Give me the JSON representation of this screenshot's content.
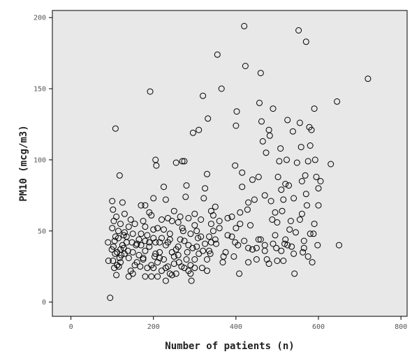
{
  "chart_data": {
    "type": "scatter",
    "xlabel": "Number of patients (n)",
    "ylabel": "PM10 (mcg/m3)",
    "xlim": [
      -45,
      815
    ],
    "ylim": [
      -10,
      205
    ],
    "xticks": [
      0,
      200,
      400,
      600,
      800
    ],
    "yticks": [
      0,
      50,
      100,
      150,
      200
    ],
    "grid": false,
    "background_color": "#e8e8e8",
    "marker_color": "#000000",
    "marker": "hollow-circle",
    "series": [
      {
        "points": [
          [
            95,
            3
          ],
          [
            90,
            42
          ],
          [
            91,
            29
          ],
          [
            100,
            71
          ],
          [
            102,
            65
          ],
          [
            104,
            57
          ],
          [
            106,
            43
          ],
          [
            108,
            122
          ],
          [
            110,
            60
          ],
          [
            118,
            89
          ],
          [
            115,
            45
          ],
          [
            112,
            35
          ],
          [
            120,
            37
          ],
          [
            125,
            40
          ],
          [
            130,
            34
          ],
          [
            120,
            28
          ],
          [
            103,
            39
          ],
          [
            107,
            34
          ],
          [
            99,
            37
          ],
          [
            105,
            24
          ],
          [
            110,
            19
          ],
          [
            116,
            25
          ],
          [
            122,
            33
          ],
          [
            128,
            38
          ],
          [
            135,
            42
          ],
          [
            140,
            31
          ],
          [
            145,
            22
          ],
          [
            150,
            35
          ],
          [
            155,
            55
          ],
          [
            160,
            41
          ],
          [
            165,
            33
          ],
          [
            170,
            48
          ],
          [
            175,
            57
          ],
          [
            180,
            68
          ],
          [
            185,
            24
          ],
          [
            190,
            42
          ],
          [
            192,
            148
          ],
          [
            195,
            61
          ],
          [
            200,
            51
          ],
          [
            203,
            32
          ],
          [
            205,
            100
          ],
          [
            207,
            96
          ],
          [
            210,
            28
          ],
          [
            215,
            35
          ],
          [
            220,
            45
          ],
          [
            225,
            81
          ],
          [
            230,
            72
          ],
          [
            235,
            59
          ],
          [
            240,
            44
          ],
          [
            245,
            57
          ],
          [
            250,
            64
          ],
          [
            255,
            98
          ],
          [
            260,
            39
          ],
          [
            265,
            60
          ],
          [
            270,
            99
          ],
          [
            272,
            50
          ],
          [
            275,
            99
          ],
          [
            278,
            74
          ],
          [
            280,
            82
          ],
          [
            285,
            59
          ],
          [
            290,
            20
          ],
          [
            292,
            15
          ],
          [
            296,
            119
          ],
          [
            300,
            54
          ],
          [
            305,
            50
          ],
          [
            310,
            121
          ],
          [
            315,
            58
          ],
          [
            320,
            145
          ],
          [
            322,
            73
          ],
          [
            325,
            41
          ],
          [
            330,
            90
          ],
          [
            332,
            129
          ],
          [
            335,
            46
          ],
          [
            340,
            64
          ],
          [
            345,
            50
          ],
          [
            350,
            44
          ],
          [
            355,
            174
          ],
          [
            360,
            57
          ],
          [
            365,
            150
          ],
          [
            370,
            32
          ],
          [
            380,
            59
          ],
          [
            390,
            46
          ],
          [
            398,
            96
          ],
          [
            400,
            124
          ],
          [
            402,
            134
          ],
          [
            405,
            40
          ],
          [
            408,
            20
          ],
          [
            410,
            55
          ],
          [
            415,
            81
          ],
          [
            420,
            194
          ],
          [
            423,
            166
          ],
          [
            428,
            65
          ],
          [
            430,
            38
          ],
          [
            435,
            54
          ],
          [
            440,
            86
          ],
          [
            445,
            72
          ],
          [
            450,
            30
          ],
          [
            455,
            44
          ],
          [
            457,
            140
          ],
          [
            460,
            161
          ],
          [
            462,
            127
          ],
          [
            465,
            113
          ],
          [
            470,
            40
          ],
          [
            473,
            105
          ],
          [
            475,
            30
          ],
          [
            480,
            121
          ],
          [
            482,
            117
          ],
          [
            485,
            71
          ],
          [
            488,
            58
          ],
          [
            490,
            136
          ],
          [
            495,
            47
          ],
          [
            498,
            38
          ],
          [
            500,
            29
          ],
          [
            502,
            88
          ],
          [
            505,
            99
          ],
          [
            508,
            108
          ],
          [
            510,
            79
          ],
          [
            512,
            64
          ],
          [
            515,
            29
          ],
          [
            518,
            41
          ],
          [
            520,
            83
          ],
          [
            523,
            100
          ],
          [
            525,
            128
          ],
          [
            528,
            82
          ],
          [
            530,
            51
          ],
          [
            533,
            57
          ],
          [
            535,
            39
          ],
          [
            538,
            120
          ],
          [
            540,
            73
          ],
          [
            542,
            20
          ],
          [
            548,
            98
          ],
          [
            552,
            191
          ],
          [
            555,
            126
          ],
          [
            558,
            109
          ],
          [
            560,
            85
          ],
          [
            562,
            35
          ],
          [
            565,
            43
          ],
          [
            568,
            89
          ],
          [
            570,
            76
          ],
          [
            572,
            68
          ],
          [
            575,
            99
          ],
          [
            578,
            123
          ],
          [
            580,
            110
          ],
          [
            583,
            121
          ],
          [
            585,
            28
          ],
          [
            588,
            48
          ],
          [
            590,
            136
          ],
          [
            592,
            100
          ],
          [
            595,
            88
          ],
          [
            598,
            40
          ],
          [
            600,
            80
          ],
          [
            605,
            85
          ],
          [
            630,
            97
          ],
          [
            645,
            141
          ],
          [
            650,
            40
          ],
          [
            720,
            157
          ],
          [
            570,
            183
          ],
          [
            470,
            36
          ],
          [
            440,
            37
          ],
          [
            330,
            30
          ],
          [
            300,
            30
          ],
          [
            285,
            40
          ],
          [
            260,
            33
          ],
          [
            250,
            27
          ],
          [
            240,
            20
          ],
          [
            230,
            15
          ],
          [
            225,
            30
          ],
          [
            215,
            42
          ],
          [
            210,
            52
          ],
          [
            200,
            45
          ],
          [
            190,
            39
          ],
          [
            180,
            43
          ],
          [
            175,
            30
          ],
          [
            168,
            25
          ],
          [
            160,
            28
          ],
          [
            150,
            20
          ],
          [
            140,
            53
          ],
          [
            135,
            46
          ],
          [
            130,
            62
          ],
          [
            125,
            70
          ],
          [
            115,
            50
          ],
          [
            108,
            46
          ],
          [
            100,
            52
          ],
          [
            140,
            18
          ],
          [
            155,
            26
          ],
          [
            170,
            68
          ],
          [
            185,
            47
          ],
          [
            200,
            24
          ],
          [
            210,
            18
          ],
          [
            220,
            22
          ],
          [
            230,
            24
          ],
          [
            245,
            19
          ],
          [
            255,
            37
          ],
          [
            265,
            44
          ],
          [
            275,
            24
          ],
          [
            285,
            22
          ],
          [
            295,
            38
          ],
          [
            310,
            34
          ],
          [
            320,
            36
          ],
          [
            340,
            42
          ],
          [
            360,
            52
          ],
          [
            375,
            35
          ],
          [
            395,
            32
          ],
          [
            420,
            43
          ],
          [
            450,
            38
          ],
          [
            480,
            27
          ],
          [
            510,
            36
          ],
          [
            540,
            34
          ],
          [
            565,
            38
          ],
          [
            580,
            48
          ],
          [
            560,
            62
          ],
          [
            520,
            44
          ],
          [
            500,
            56
          ],
          [
            470,
            75
          ],
          [
            430,
            70
          ],
          [
            410,
            63
          ],
          [
            400,
            52
          ],
          [
            380,
            47
          ],
          [
            345,
            61
          ],
          [
            335,
            36
          ],
          [
            325,
            80
          ],
          [
            305,
            39
          ],
          [
            290,
            48
          ],
          [
            270,
            52
          ],
          [
            260,
            56
          ],
          [
            240,
            48
          ],
          [
            235,
            42
          ],
          [
            220,
            58
          ],
          [
            205,
            34
          ],
          [
            195,
            26
          ],
          [
            180,
            36
          ],
          [
            165,
            44
          ],
          [
            150,
            48
          ],
          [
            145,
            58
          ],
          [
            130,
            49
          ],
          [
            118,
            31
          ],
          [
            112,
            26
          ],
          [
            102,
            29
          ],
          [
            180,
            53
          ],
          [
            190,
            63
          ],
          [
            200,
            73
          ],
          [
            225,
            51
          ],
          [
            250,
            32
          ],
          [
            275,
            43
          ],
          [
            300,
            62
          ],
          [
            315,
            46
          ],
          [
            350,
            67
          ],
          [
            390,
            60
          ],
          [
            415,
            91
          ],
          [
            455,
            88
          ],
          [
            495,
            63
          ],
          [
            525,
            40
          ],
          [
            555,
            58
          ],
          [
            575,
            32
          ],
          [
            590,
            55
          ],
          [
            600,
            68
          ],
          [
            180,
            18
          ],
          [
            195,
            18
          ],
          [
            235,
            25
          ],
          [
            245,
            35
          ],
          [
            262,
            28
          ],
          [
            280,
            30
          ],
          [
            300,
            24
          ],
          [
            318,
            24
          ],
          [
            330,
            22
          ],
          [
            338,
            34
          ],
          [
            352,
            41
          ],
          [
            368,
            28
          ],
          [
            398,
            42
          ],
          [
            430,
            28
          ],
          [
            460,
            44
          ],
          [
            490,
            41
          ],
          [
            515,
            72
          ],
          [
            545,
            49
          ],
          [
            175,
            31
          ],
          [
            205,
            42
          ],
          [
            215,
            31
          ],
          [
            230,
            40
          ],
          [
            255,
            20
          ],
          [
            268,
            25
          ],
          [
            282,
            35
          ],
          [
            290,
            26
          ],
          [
            308,
            45
          ],
          [
            340,
            55
          ],
          [
            120,
            55
          ],
          [
            128,
            47
          ],
          [
            138,
            36
          ],
          [
            148,
            42
          ],
          [
            158,
            40
          ],
          [
            170,
            40
          ]
        ]
      }
    ]
  }
}
